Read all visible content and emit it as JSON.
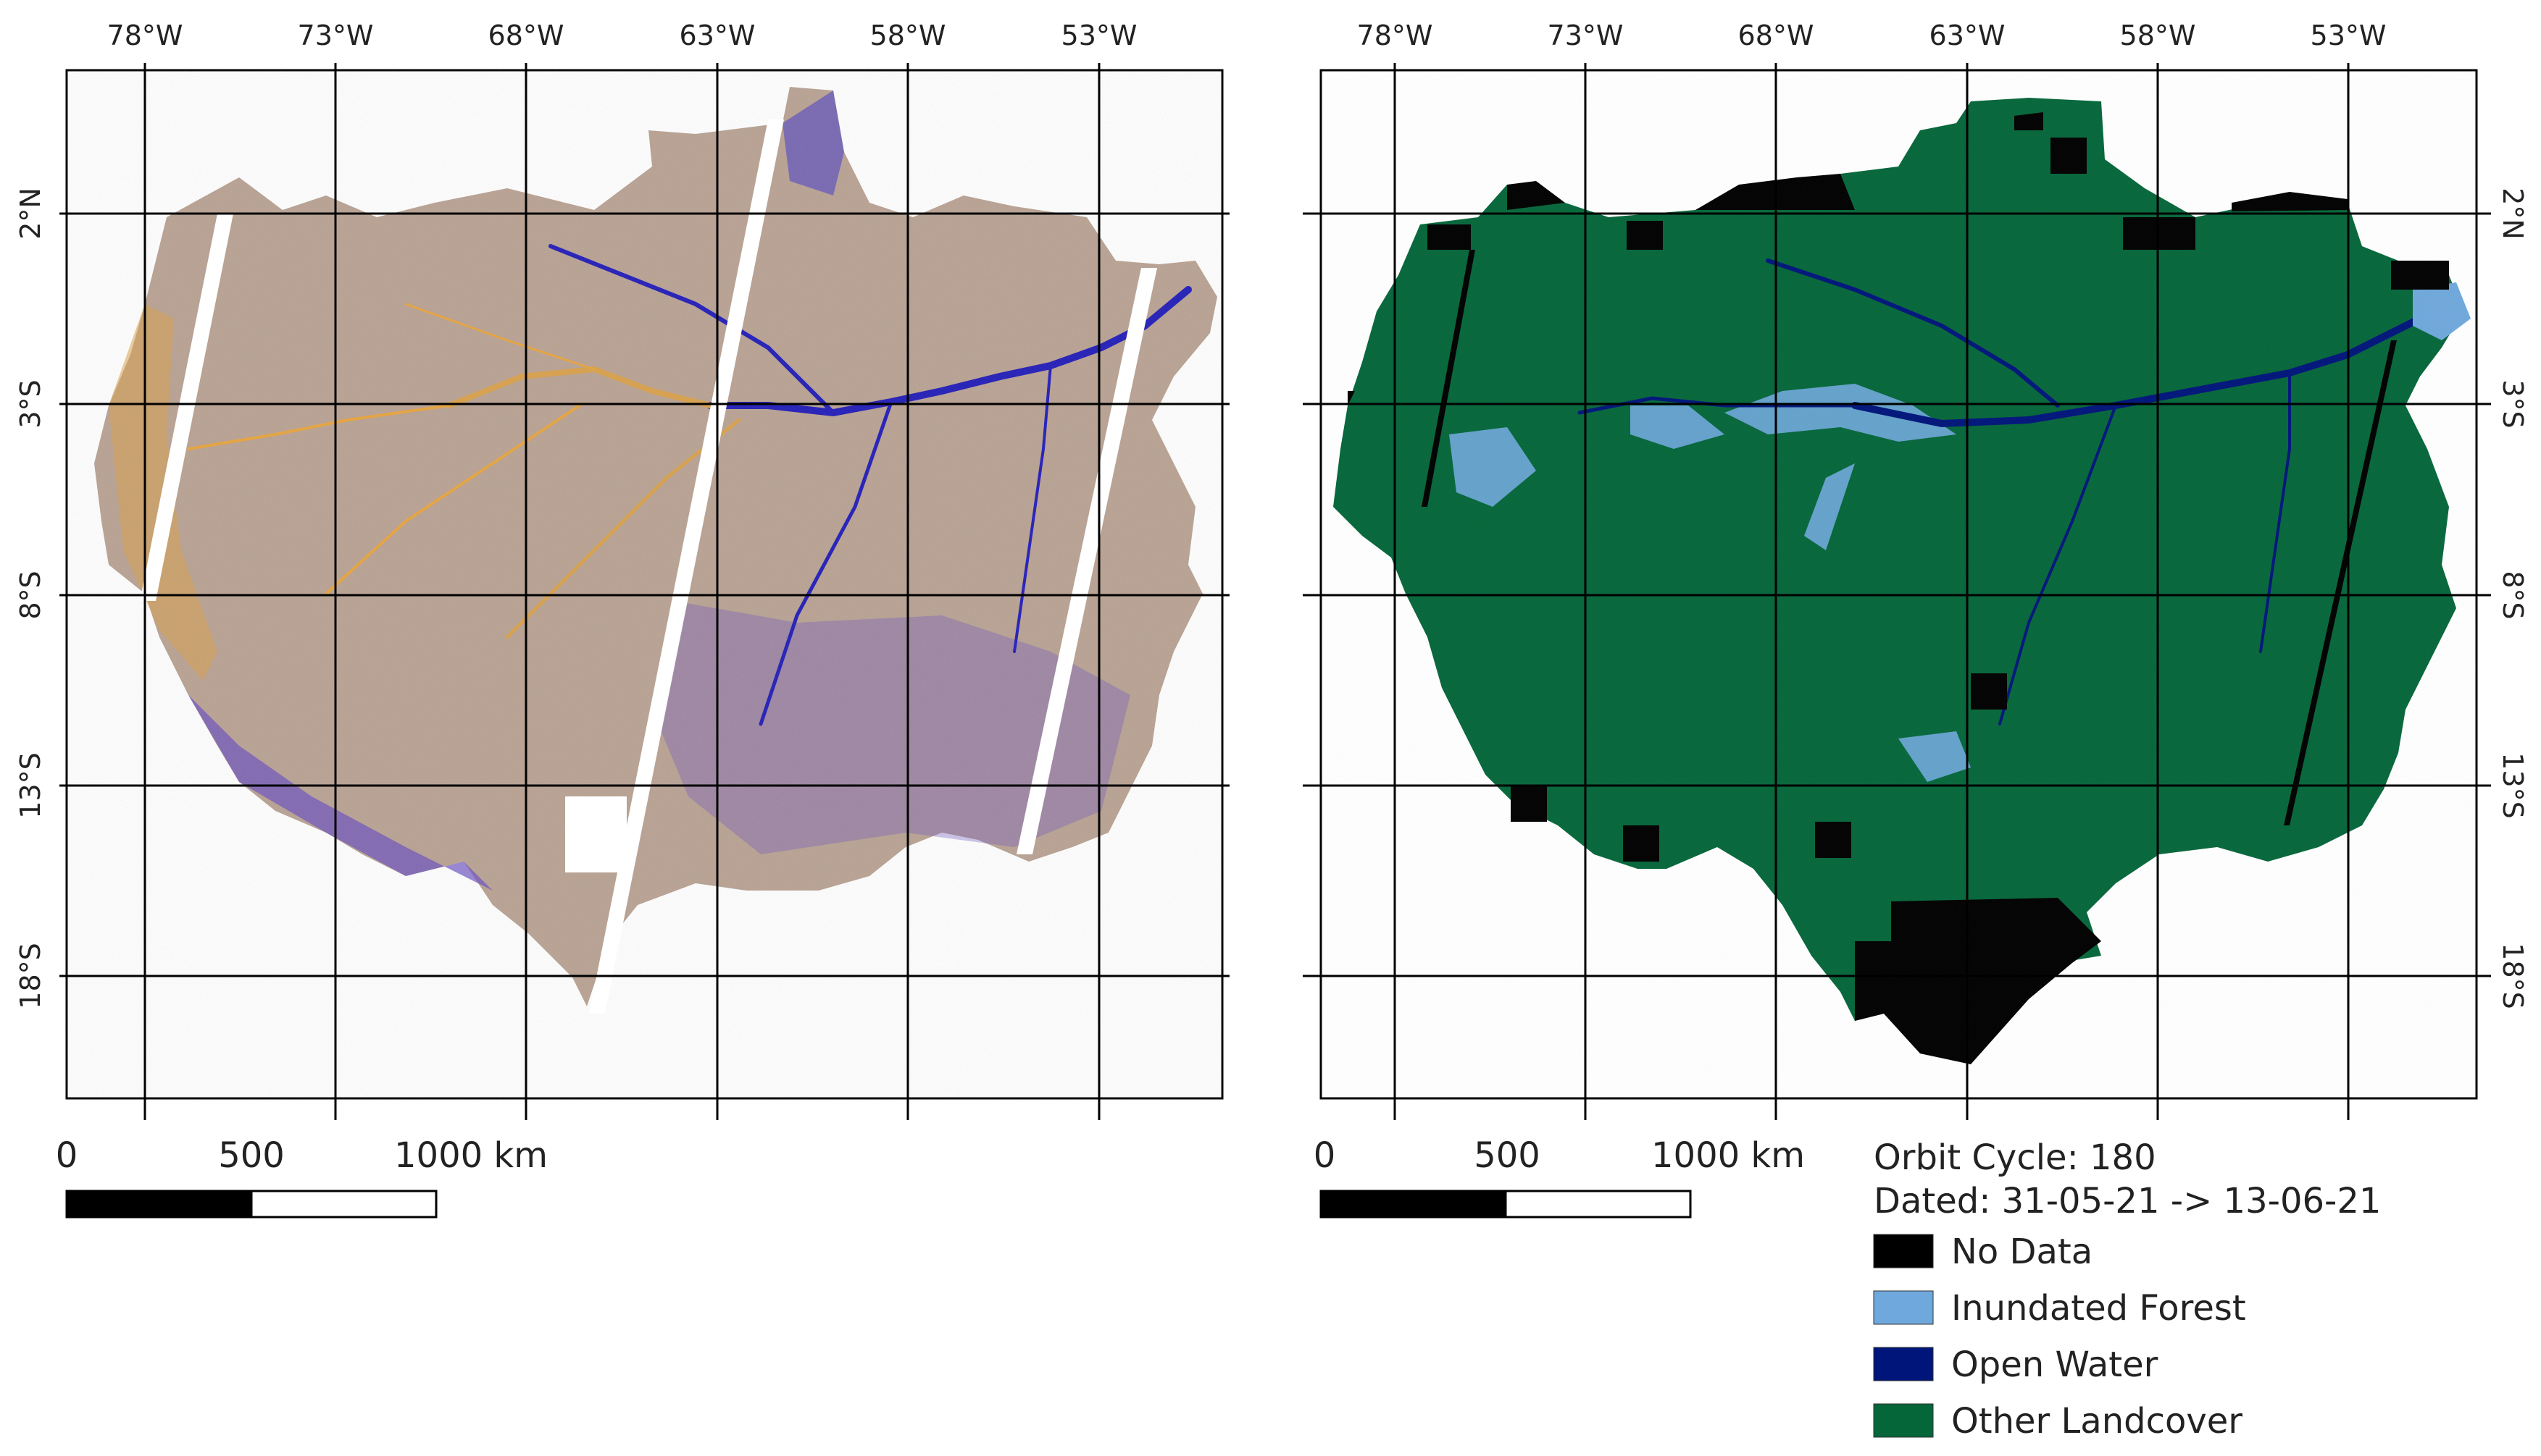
{
  "maps": [
    {
      "name": "backscatter-composite",
      "lon_ticks": [
        "78°W",
        "73°W",
        "68°W",
        "63°W",
        "58°W",
        "53°W"
      ],
      "lat_ticks": [
        "2°N",
        "3°S",
        "8°S",
        "13°S",
        "18°S"
      ],
      "scalebar": {
        "labels": [
          "0",
          "500",
          "1000 km"
        ]
      }
    },
    {
      "name": "inundation-classification",
      "lon_ticks": [
        "78°W",
        "73°W",
        "68°W",
        "63°W",
        "58°W",
        "53°W"
      ],
      "lat_ticks": [
        "2°N",
        "3°S",
        "8°S",
        "13°S",
        "18°S"
      ],
      "scalebar": {
        "labels": [
          "0",
          "500",
          "1000 km"
        ]
      }
    }
  ],
  "legend": {
    "orbit_cycle": "Orbit Cycle: 180",
    "dated": "Dated: 31-05-21 -> 13-06-21",
    "items": [
      {
        "label": "No Data",
        "color": "#000000"
      },
      {
        "label": "Inundated Forest",
        "color": "#6fa8dc"
      },
      {
        "label": "Open Water",
        "color": "#00157a"
      },
      {
        "label": "Other Landcover",
        "color": "#05663a"
      }
    ]
  },
  "colors": {
    "composite_base": "#b8a192",
    "composite_orange": "#e8a33b",
    "composite_purple": "#6a4fc0",
    "river_blue": "#1f1ab8",
    "landcover_green": "#05663a",
    "nodata_black": "#000000",
    "inundated_blue": "#6fa8dc",
    "openwater_blue": "#00157a",
    "grid": "#000000"
  }
}
